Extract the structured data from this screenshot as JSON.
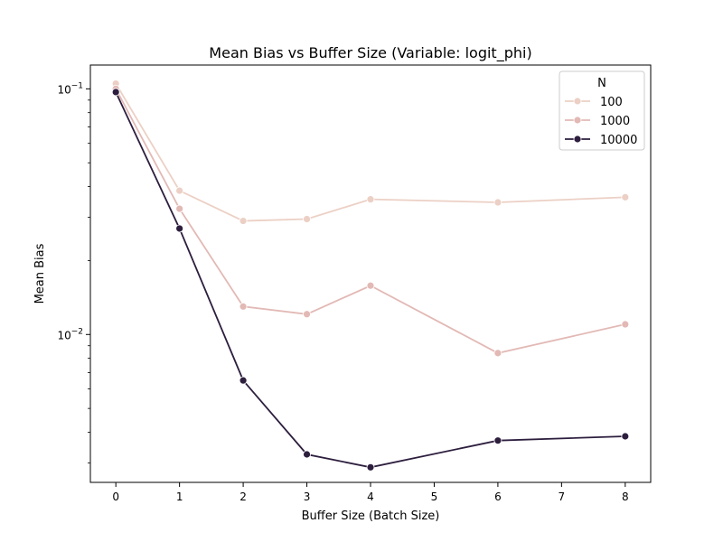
{
  "chart_data": {
    "type": "line",
    "title": "Mean Bias vs Buffer Size (Variable: logit_phi)",
    "xlabel": "Buffer Size (Batch Size)",
    "ylabel": "Mean Bias",
    "yscale": "log",
    "xlim": [
      -0.4,
      8.4
    ],
    "ylim": [
      0.0025,
      0.125
    ],
    "xticks": [
      0,
      1,
      2,
      3,
      4,
      5,
      6,
      7,
      8
    ],
    "yticks": [
      {
        "value": 0.1,
        "base": "10",
        "exp": "−1"
      },
      {
        "value": 0.01,
        "base": "10",
        "exp": "−2"
      }
    ],
    "grid": false,
    "legend": {
      "title": "N",
      "placement": "top-right"
    },
    "series": [
      {
        "name": "100",
        "color": "#ecd0c5",
        "x": [
          0,
          1,
          2,
          3,
          4,
          6,
          8
        ],
        "values": [
          0.105,
          0.0385,
          0.029,
          0.0295,
          0.0355,
          0.0345,
          0.0362
        ]
      },
      {
        "name": "1000",
        "color": "#e2b9b5",
        "x": [
          0,
          1,
          2,
          3,
          4,
          6,
          8
        ],
        "values": [
          0.1,
          0.0325,
          0.013,
          0.0121,
          0.0158,
          0.0084,
          0.011
        ]
      },
      {
        "name": "10000",
        "color": "#2d1e3e",
        "x": [
          0,
          1,
          2,
          3,
          4,
          6,
          8
        ],
        "values": [
          0.097,
          0.027,
          0.0065,
          0.00325,
          0.00288,
          0.0037,
          0.00385
        ]
      }
    ]
  }
}
